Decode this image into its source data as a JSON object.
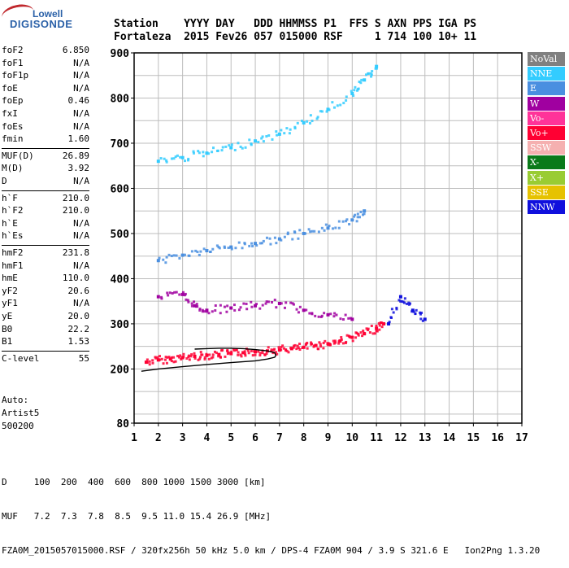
{
  "logo": {
    "line1": "Lowell",
    "line2": "DIGISONDE"
  },
  "header": {
    "line1": "Station    YYYY DAY   DDD HHMMSS P1  FFS S AXN PPS IGA PS",
    "line2": "Fortaleza  2015 Fev26 057 015000 RSF     1 714 100 10+ 11"
  },
  "params": [
    {
      "name": "foF2",
      "value": "6.850"
    },
    {
      "name": "foF1",
      "value": "N/A"
    },
    {
      "name": "foF1p",
      "value": "N/A"
    },
    {
      "name": "foE",
      "value": "N/A"
    },
    {
      "name": "foEp",
      "value": "0.46"
    },
    {
      "name": "fxI",
      "value": "N/A"
    },
    {
      "name": "foEs",
      "value": "N/A"
    },
    {
      "name": "fmin",
      "value": "1.60"
    },
    {
      "name": "MUF(D)",
      "value": "26.89"
    },
    {
      "name": "M(D)",
      "value": "3.92"
    },
    {
      "name": "D",
      "value": "N/A"
    },
    {
      "name": "h`F",
      "value": "210.0"
    },
    {
      "name": "h`F2",
      "value": "210.0"
    },
    {
      "name": "h`E",
      "value": "N/A"
    },
    {
      "name": "h`Es",
      "value": "N/A"
    },
    {
      "name": "hmF2",
      "value": "231.8"
    },
    {
      "name": "hmF1",
      "value": "N/A"
    },
    {
      "name": "hmE",
      "value": "110.0"
    },
    {
      "name": "yF2",
      "value": "20.6"
    },
    {
      "name": "yF1",
      "value": "N/A"
    },
    {
      "name": "yE",
      "value": "20.0"
    },
    {
      "name": "B0",
      "value": "22.2"
    },
    {
      "name": "B1",
      "value": "1.53"
    },
    {
      "name": "C-level",
      "value": "55"
    }
  ],
  "autoscale": {
    "line1": "Auto:",
    "line2": "Artist5",
    "line3": "500200"
  },
  "legend": [
    {
      "label": "NoVal",
      "bg": "#808080",
      "fg": "#ffffff"
    },
    {
      "label": "NNE",
      "bg": "#33ccff",
      "fg": "#ffffff"
    },
    {
      "label": "E",
      "bg": "#4a8fe0",
      "fg": "#ffffff"
    },
    {
      "label": "W",
      "bg": "#a000a0",
      "fg": "#ffffff"
    },
    {
      "label": "Vo-",
      "bg": "#ff3399",
      "fg": "#ffffff"
    },
    {
      "label": "Vo+",
      "bg": "#ff0033",
      "fg": "#ffffff"
    },
    {
      "label": "SSW",
      "bg": "#f5b0b0",
      "fg": "#ffffff"
    },
    {
      "label": "X-",
      "bg": "#0a7a1a",
      "fg": "#ffffff"
    },
    {
      "label": "X+",
      "bg": "#99cc33",
      "fg": "#ffffff"
    },
    {
      "label": "SSE",
      "bg": "#e6c200",
      "fg": "#ffffff"
    },
    {
      "label": "NNW",
      "bg": "#1010dd",
      "fg": "#ffffff"
    }
  ],
  "footer": {
    "line1": "D     100  200  400  600  800 1000 1500 3000 [km]",
    "line2": "MUF   7.2  7.3  7.8  8.5  9.5 11.0 15.4 26.9 [MHz]",
    "line3": "FZA0M_2015057015000.RSF / 320fx256h 50 kHz 5.0 km / DPS-4 FZA0M 904 / 3.9 S 321.6 E   Ion2Png 1.3.20"
  },
  "chart_data": {
    "type": "scatter",
    "title": "",
    "xlabel": "",
    "ylabel": "",
    "xlim": [
      1,
      17
    ],
    "ylim": [
      80,
      900
    ],
    "x_ticks": [
      1,
      2,
      3,
      4,
      5,
      6,
      7,
      8,
      9,
      10,
      11,
      12,
      13,
      14,
      15,
      16,
      17
    ],
    "y_ticks": [
      80,
      200,
      300,
      400,
      500,
      600,
      700,
      800,
      900
    ],
    "grid": true,
    "series": [
      {
        "name": "Vo+",
        "color": "#ff0033",
        "x": [
          1.5,
          2,
          2.5,
          3,
          3.5,
          4,
          4.5,
          5,
          5.5,
          6,
          6.5,
          7,
          7.5,
          8,
          8.5,
          9,
          9.5,
          10,
          10.5,
          11,
          11.3
        ],
        "y": [
          215,
          220,
          222,
          225,
          228,
          230,
          232,
          234,
          236,
          238,
          240,
          242,
          245,
          248,
          252,
          256,
          262,
          270,
          278,
          290,
          300
        ]
      },
      {
        "name": "E",
        "color": "#4a8fe0",
        "x": [
          2,
          3,
          4,
          5,
          6,
          7,
          8,
          9,
          10,
          10.5
        ],
        "y": [
          440,
          452,
          462,
          470,
          478,
          488,
          500,
          512,
          530,
          550
        ]
      },
      {
        "name": "W",
        "color": "#a000a0",
        "x": [
          2,
          3,
          3.5,
          4,
          5,
          6,
          7,
          8,
          9,
          10
        ],
        "y": [
          360,
          365,
          340,
          330,
          335,
          340,
          345,
          330,
          320,
          310
        ]
      },
      {
        "name": "NNE",
        "color": "#33ccff",
        "x": [
          2,
          3,
          4,
          5,
          6,
          7,
          8,
          9,
          10,
          10.5,
          11
        ],
        "y": [
          660,
          668,
          678,
          690,
          705,
          720,
          745,
          775,
          810,
          840,
          870
        ]
      },
      {
        "name": "NNW",
        "color": "#1010dd",
        "x": [
          11.5,
          12,
          12.5,
          13
        ],
        "y": [
          300,
          360,
          330,
          310
        ]
      }
    ]
  },
  "profile_curve": {
    "x": [
      1.3,
      2,
      3,
      4,
      5,
      6,
      6.5,
      6.8,
      6.85,
      6.8,
      6.5,
      6,
      5.5,
      5,
      4.5,
      4,
      3.5
    ],
    "y": [
      195,
      200,
      205,
      210,
      214,
      218,
      222,
      226,
      230,
      236,
      240,
      243,
      245,
      246,
      246,
      245,
      244
    ]
  }
}
